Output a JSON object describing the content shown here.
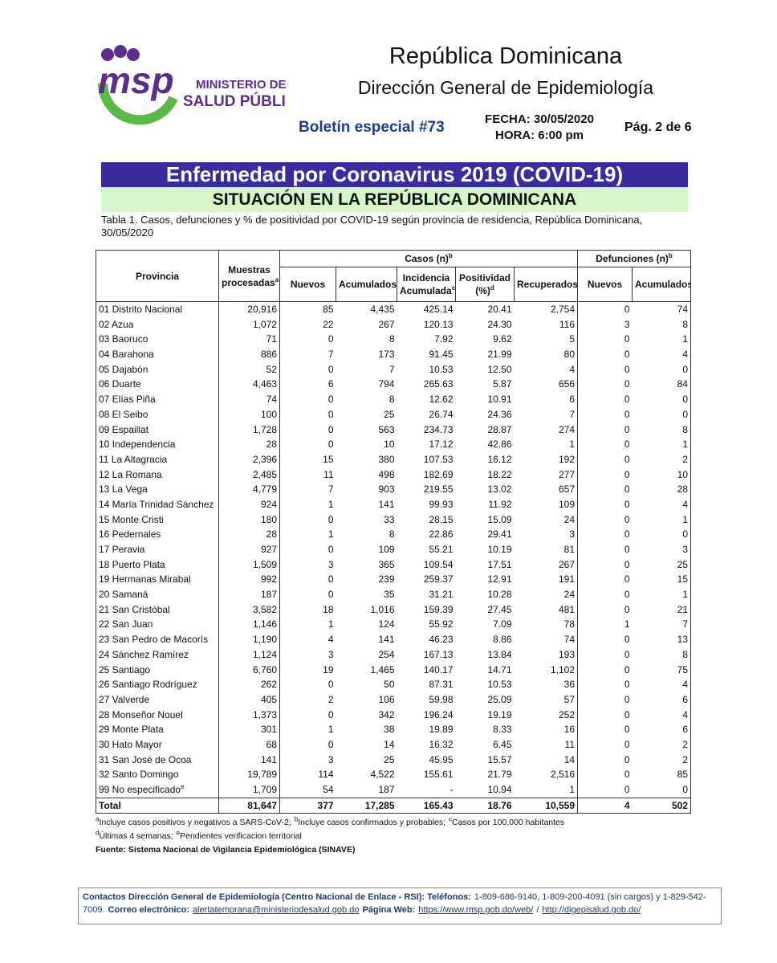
{
  "header": {
    "logo": {
      "letters": "msp",
      "line1": "MINISTERIO DE",
      "line2": "SALUD PÚBLICA"
    },
    "country": "República Dominicana",
    "directorate": "Dirección General de Epidemiología",
    "bulletin": "Boletín especial #73",
    "date": "FECHA: 30/05/2020",
    "time": "HORA: 6:00 pm",
    "page": "Pág. 2 de 6"
  },
  "banner": {
    "title": "Enfermedad por Coronavirus 2019 (COVID-19)",
    "subtitle": "SITUACIÓN EN LA REPÚBLICA DOMINICANA"
  },
  "caption": "Tabla 1. Casos, defunciones y % de positividad por COVID-19 según provincia de residencia, República Dominicana, 30/05/2020",
  "table": {
    "header": [
      {
        "text": "Provincia"
      },
      {
        "text": "Muestras procesadas",
        "sup": "a"
      },
      {
        "text": "Casos (n)",
        "sup": "b"
      },
      {
        "text": "Defunciones (n)",
        "sup": "b"
      }
    ],
    "subheader": [
      {
        "text": "Nuevos"
      },
      {
        "text": "Acumulados"
      },
      {
        "text": "Incidencia Acumulada",
        "sup": "c"
      },
      {
        "text": "Positividad (%)",
        "sup": "d"
      },
      {
        "text": "Recuperados"
      },
      {
        "text": "Nuevos"
      },
      {
        "text": "Acumulados"
      }
    ],
    "rows": [
      {
        "cells": [
          "01 Distrito Nacional",
          "20,916",
          "85",
          "4,435",
          "425.14",
          "20.41",
          "2,754",
          "0",
          "74"
        ]
      },
      {
        "cells": [
          "02 Azua",
          "1,072",
          "22",
          "267",
          "120.13",
          "24.30",
          "116",
          "3",
          "8"
        ]
      },
      {
        "cells": [
          "03 Baoruco",
          "71",
          "0",
          "8",
          "7.92",
          "9.62",
          "5",
          "0",
          "1"
        ]
      },
      {
        "cells": [
          "04 Barahona",
          "886",
          "7",
          "173",
          "91.45",
          "21.99",
          "80",
          "0",
          "4"
        ]
      },
      {
        "cells": [
          "05 Dajabón",
          "52",
          "0",
          "7",
          "10.53",
          "12.50",
          "4",
          "0",
          "0"
        ]
      },
      {
        "cells": [
          "06 Duarte",
          "4,463",
          "6",
          "794",
          "265.63",
          "5.87",
          "656",
          "0",
          "84"
        ]
      },
      {
        "cells": [
          "07 Elías Piña",
          "74",
          "0",
          "8",
          "12.62",
          "10.91",
          "6",
          "0",
          "0"
        ]
      },
      {
        "cells": [
          "08 El Seibo",
          "100",
          "0",
          "25",
          "26.74",
          "24.36",
          "7",
          "0",
          "0"
        ]
      },
      {
        "cells": [
          "09 Espaillat",
          "1,728",
          "0",
          "563",
          "234.73",
          "28.87",
          "274",
          "0",
          "8"
        ]
      },
      {
        "cells": [
          "10 Independencia",
          "28",
          "0",
          "10",
          "17.12",
          "42.86",
          "1",
          "0",
          "1"
        ]
      },
      {
        "cells": [
          "11 La Altagracia",
          "2,396",
          "15",
          "380",
          "107.53",
          "16.12",
          "192",
          "0",
          "2"
        ]
      },
      {
        "cells": [
          "12 La Romana",
          "2,485",
          "11",
          "498",
          "182.69",
          "18.22",
          "277",
          "0",
          "10"
        ]
      },
      {
        "cells": [
          "13 La Vega",
          "4,779",
          "7",
          "903",
          "219.55",
          "13.02",
          "657",
          "0",
          "28"
        ]
      },
      {
        "cells": [
          "14 María Trinidad Sánchez",
          "924",
          "1",
          "141",
          "99.93",
          "11.92",
          "109",
          "0",
          "4"
        ]
      },
      {
        "cells": [
          "15 Monte Cristi",
          "180",
          "0",
          "33",
          "28.15",
          "15.09",
          "24",
          "0",
          "1"
        ]
      },
      {
        "cells": [
          "16 Pedernales",
          "28",
          "1",
          "8",
          "22.86",
          "29.41",
          "3",
          "0",
          "0"
        ]
      },
      {
        "cells": [
          "17 Peravia",
          "927",
          "0",
          "109",
          "55.21",
          "10.19",
          "81",
          "0",
          "3"
        ]
      },
      {
        "cells": [
          "18 Puerto Plata",
          "1,509",
          "3",
          "365",
          "109.54",
          "17.51",
          "267",
          "0",
          "25"
        ]
      },
      {
        "cells": [
          "19 Hermanas Mirabal",
          "992",
          "0",
          "239",
          "259.37",
          "12.91",
          "191",
          "0",
          "15"
        ]
      },
      {
        "cells": [
          "20 Samaná",
          "187",
          "0",
          "35",
          "31.21",
          "10.28",
          "24",
          "0",
          "1"
        ]
      },
      {
        "cells": [
          "21 San Cristóbal",
          "3,582",
          "18",
          "1,016",
          "159.39",
          "27.45",
          "481",
          "0",
          "21"
        ]
      },
      {
        "cells": [
          "22 San Juan",
          "1,146",
          "1",
          "124",
          "55.92",
          "7.09",
          "78",
          "1",
          "7"
        ]
      },
      {
        "cells": [
          "23 San Pedro de Macorís",
          "1,190",
          "4",
          "141",
          "46.23",
          "8.86",
          "74",
          "0",
          "13"
        ]
      },
      {
        "cells": [
          "24 Sánchez Ramírez",
          "1,124",
          "3",
          "254",
          "167.13",
          "13.84",
          "193",
          "0",
          "8"
        ]
      },
      {
        "cells": [
          "25 Santiago",
          "6,760",
          "19",
          "1,465",
          "140.17",
          "14.71",
          "1,102",
          "0",
          "75"
        ]
      },
      {
        "cells": [
          "26 Santiago Rodríguez",
          "262",
          "0",
          "50",
          "87.31",
          "10.53",
          "36",
          "0",
          "4"
        ]
      },
      {
        "cells": [
          "27 Valverde",
          "405",
          "2",
          "106",
          "59.98",
          "25.09",
          "57",
          "0",
          "6"
        ]
      },
      {
        "cells": [
          "28 Monseñor Nouel",
          "1,373",
          "0",
          "342",
          "196.24",
          "19.19",
          "252",
          "0",
          "4"
        ]
      },
      {
        "cells": [
          "29 Monte Plata",
          "301",
          "1",
          "38",
          "19.89",
          "8.33",
          "16",
          "0",
          "6"
        ]
      },
      {
        "cells": [
          "30 Hato Mayor",
          "68",
          "0",
          "14",
          "16.32",
          "6.45",
          "11",
          "0",
          "2"
        ]
      },
      {
        "cells": [
          "31 San José de Ocoa",
          "141",
          "3",
          "25",
          "45.95",
          "15.57",
          "14",
          "0",
          "2"
        ]
      },
      {
        "cells": [
          "32 Santo Domingo",
          "19,789",
          "114",
          "4,522",
          "155.61",
          "21.79",
          "2,516",
          "0",
          "85"
        ]
      },
      {
        "cells": [
          "99 No especificado",
          "1,709",
          "54",
          "187",
          "-",
          "10.94",
          "1",
          "0",
          "0"
        ],
        "sup": "e"
      },
      {
        "cells": [
          "Total",
          "81,647",
          "377",
          "17,285",
          "165.43",
          "18.76",
          "10,559",
          "4",
          "502"
        ],
        "total": true
      }
    ]
  },
  "footnotes": [
    [
      {
        "sup": "a",
        "text": "Incluye casos positivos y negativos a SARS-CoV-2;"
      },
      {
        "sup": "b",
        "text": "Incluye casos confirmados y probables;"
      },
      {
        "sup": "c",
        "text": "Casos por 100,000 habitantes"
      }
    ],
    [
      {
        "sup": "d",
        "text": "Últimas 4 semanas;"
      },
      {
        "sup": "e",
        "text": "Pendientes verificacion territorial"
      }
    ]
  ],
  "source": "Fuente: Sistema Nacional de Vigilancia Epidemiológica (SINAVE)",
  "contacts": [
    {
      "text": "Contactos Dirección General de Epidemiología (Centro Nacional de Enlace - RSI): Teléfonos:",
      "style": "bold"
    },
    {
      "text": "1-809-686-9140, 1-809-200-4091 (sin cargos) y 1-829-542-7009.",
      "style": "plain"
    },
    {
      "text": "Correo electrónico:",
      "style": "bold"
    },
    {
      "text": "alertatemprana@ministeriodesalud.gob.do",
      "style": "link"
    },
    {
      "text": "Página Web:",
      "style": "bold"
    },
    {
      "text": "https://www.msp.gob.do/web/",
      "style": "link"
    },
    {
      "text": "/",
      "style": "plain"
    },
    {
      "text": "http://digepisalud.gob.do/",
      "style": "link"
    }
  ]
}
